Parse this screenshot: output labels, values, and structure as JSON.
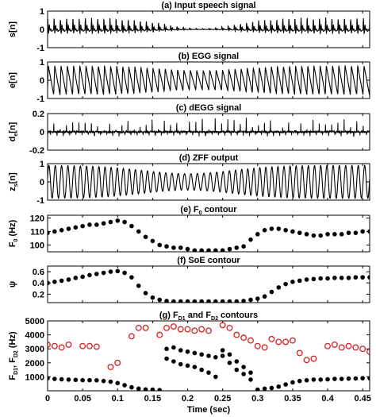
{
  "chart_data": [
    {
      "type": "line",
      "title": "(a) Input speech signal",
      "ylabel": "s[n]",
      "xlim": [
        0,
        0.46
      ],
      "ylim": [
        -1,
        1
      ],
      "yticks": [
        "1",
        "0",
        "-1"
      ],
      "series": [
        {
          "values": []
        }
      ]
    },
    {
      "type": "line",
      "title": "(b) EGG signal",
      "ylabel": "e[n]",
      "xlim": [
        0,
        0.46
      ],
      "ylim": [
        -1,
        1
      ],
      "yticks": [
        "1",
        "0",
        "-1"
      ],
      "series": [
        {
          "values": []
        }
      ]
    },
    {
      "type": "line",
      "title": "(c) dEGG signal",
      "ylabel": "d",
      "ylabel_sub": "e",
      "ylabel_suffix": "[n]",
      "xlim": [
        0,
        0.46
      ],
      "ylim": [
        -0.2,
        0.2
      ],
      "yticks": [
        "0.2",
        "0",
        "-0.2"
      ],
      "series": [
        {
          "values": []
        }
      ]
    },
    {
      "type": "line",
      "title": "(d) ZFF output",
      "ylabel": "z",
      "ylabel_sub": "s",
      "ylabel_suffix": "[n]",
      "xlim": [
        0,
        0.46
      ],
      "ylim": [
        -1,
        1
      ],
      "yticks": [
        "1",
        "0",
        "-1"
      ],
      "series": [
        {
          "values": []
        }
      ]
    },
    {
      "type": "scatter",
      "title": "(e) F",
      "title_sub": "0",
      "title_suffix": " contour",
      "ylabel": "F",
      "ylabel_sub": "0",
      "ylabel_suffix": " (Hz)",
      "xlim": [
        0,
        0.46
      ],
      "ylim": [
        95,
        122
      ],
      "yticks": [
        "120",
        "110",
        "100"
      ],
      "series": [
        {
          "x": [
            0.0,
            0.01,
            0.02,
            0.03,
            0.04,
            0.05,
            0.06,
            0.07,
            0.08,
            0.09,
            0.1,
            0.11,
            0.12,
            0.13,
            0.14,
            0.15,
            0.16,
            0.17,
            0.18,
            0.19,
            0.2,
            0.21,
            0.22,
            0.23,
            0.24,
            0.25,
            0.26,
            0.27,
            0.28,
            0.29,
            0.3,
            0.31,
            0.32,
            0.33,
            0.34,
            0.35,
            0.36,
            0.37,
            0.38,
            0.39,
            0.4,
            0.41,
            0.42,
            0.43,
            0.44,
            0.45,
            0.46
          ],
          "values": [
            109,
            110,
            111,
            112,
            113,
            114,
            115,
            115,
            116,
            117,
            118,
            117,
            114,
            110,
            106,
            103,
            100,
            99,
            98,
            98,
            97,
            96,
            96,
            96,
            96,
            96,
            97,
            98,
            99,
            104,
            108,
            111,
            112,
            112,
            111,
            110,
            109,
            108,
            107,
            107,
            108,
            108,
            108,
            109,
            109,
            110,
            110
          ]
        }
      ]
    },
    {
      "type": "scatter",
      "title": "(f) SoE contour",
      "ylabel": "ψ",
      "xlim": [
        0,
        0.46
      ],
      "ylim": [
        0.05,
        0.7
      ],
      "yticks": [
        "0.6",
        "0.4",
        "0.2"
      ],
      "series": [
        {
          "x": [
            0.0,
            0.01,
            0.02,
            0.03,
            0.04,
            0.05,
            0.06,
            0.07,
            0.08,
            0.09,
            0.1,
            0.11,
            0.12,
            0.13,
            0.14,
            0.15,
            0.16,
            0.17,
            0.18,
            0.19,
            0.2,
            0.21,
            0.22,
            0.23,
            0.24,
            0.25,
            0.26,
            0.27,
            0.28,
            0.29,
            0.3,
            0.31,
            0.32,
            0.33,
            0.34,
            0.35,
            0.36,
            0.37,
            0.38,
            0.39,
            0.4,
            0.41,
            0.42,
            0.43,
            0.44,
            0.45,
            0.46
          ],
          "values": [
            0.4,
            0.42,
            0.44,
            0.46,
            0.49,
            0.51,
            0.54,
            0.56,
            0.58,
            0.6,
            0.61,
            0.58,
            0.5,
            0.35,
            0.22,
            0.14,
            0.1,
            0.08,
            0.07,
            0.07,
            0.07,
            0.07,
            0.07,
            0.07,
            0.07,
            0.07,
            0.07,
            0.07,
            0.08,
            0.1,
            0.12,
            0.16,
            0.24,
            0.32,
            0.38,
            0.42,
            0.44,
            0.46,
            0.47,
            0.48,
            0.48,
            0.49,
            0.49,
            0.49,
            0.5,
            0.5,
            0.5
          ]
        }
      ]
    },
    {
      "type": "scatter",
      "title": "(g) F",
      "title_sub1": "D1",
      "title_mid": " and F",
      "title_sub2": "D2",
      "title_suffix": " contours",
      "ylabel": "F",
      "ylabel_sub1": "D1",
      "ylabel_mid": ", F",
      "ylabel_sub2": "D2",
      "ylabel_suffix": " (Hz)",
      "xlabel": "Time (sec)",
      "xlim": [
        0,
        0.46
      ],
      "ylim": [
        0,
        5000
      ],
      "yticks": [
        "5000",
        "4000",
        "3000",
        "2000",
        "1000"
      ],
      "xticks": [
        "0",
        "0.05",
        "0.1",
        "0.15",
        "0.2",
        "0.25",
        "0.3",
        "0.35",
        "0.4",
        "0.45"
      ],
      "series": [
        {
          "color": "#000000",
          "marker": "filled-circle",
          "x": [
            0.0,
            0.01,
            0.02,
            0.03,
            0.04,
            0.05,
            0.06,
            0.07,
            0.08,
            0.09,
            0.1,
            0.11,
            0.12,
            0.13,
            0.14,
            0.15,
            0.16,
            0.17,
            0.18,
            0.19,
            0.2,
            0.21,
            0.22,
            0.23,
            0.24,
            0.25,
            0.26,
            0.27,
            0.28,
            0.29,
            0.3,
            0.31,
            0.32,
            0.33,
            0.34,
            0.35,
            0.36,
            0.37,
            0.38,
            0.39,
            0.4,
            0.41,
            0.42,
            0.43,
            0.44,
            0.45,
            0.46,
            0.17,
            0.18,
            0.19,
            0.2,
            0.21,
            0.22,
            0.23,
            0.24,
            0.25,
            0.26,
            0.27,
            0.28,
            0.29
          ],
          "values": [
            900,
            850,
            820,
            800,
            780,
            760,
            760,
            750,
            700,
            650,
            550,
            400,
            250,
            150,
            100,
            80,
            50,
            3000,
            3100,
            2900,
            2800,
            2700,
            2600,
            2500,
            2400,
            2900,
            2600,
            2100,
            1700,
            1300,
            80,
            150,
            200,
            300,
            450,
            600,
            700,
            750,
            800,
            800,
            820,
            850,
            850,
            870,
            880,
            900,
            900,
            2300,
            2100,
            1900,
            1800,
            1700,
            1500,
            1300,
            1000,
            2500,
            2000,
            1500,
            1200,
            800
          ]
        },
        {
          "color": "#d62020",
          "marker": "open-circle",
          "x": [
            0.0,
            0.01,
            0.02,
            0.03,
            0.05,
            0.06,
            0.07,
            0.09,
            0.1,
            0.12,
            0.13,
            0.14,
            0.16,
            0.17,
            0.18,
            0.19,
            0.2,
            0.21,
            0.22,
            0.23,
            0.25,
            0.26,
            0.27,
            0.28,
            0.29,
            0.3,
            0.31,
            0.32,
            0.33,
            0.34,
            0.35,
            0.36,
            0.37,
            0.38,
            0.4,
            0.41,
            0.42,
            0.43,
            0.44,
            0.45,
            0.46
          ],
          "values": [
            3300,
            3200,
            3100,
            3300,
            3200,
            3200,
            3150,
            1700,
            2000,
            3900,
            4500,
            4500,
            4000,
            4500,
            4600,
            4400,
            4400,
            4300,
            4400,
            4300,
            4700,
            4500,
            4000,
            3800,
            3600,
            3200,
            3100,
            3700,
            3500,
            3500,
            3600,
            2700,
            2200,
            2300,
            3200,
            3300,
            3100,
            3200,
            3100,
            3000,
            2800
          ]
        }
      ]
    }
  ]
}
